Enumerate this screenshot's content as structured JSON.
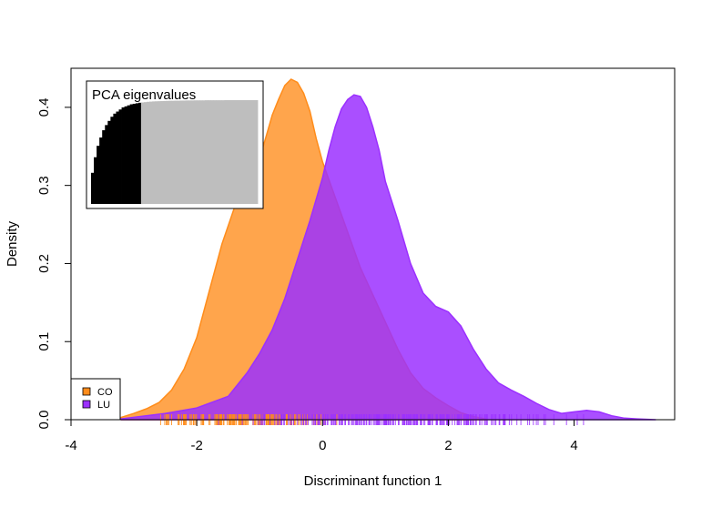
{
  "chart_data": {
    "type": "area",
    "title": "",
    "xlabel": "Discriminant function 1",
    "ylabel": "Density",
    "xlim": [
      -4.0,
      5.6
    ],
    "ylim": [
      0.0,
      0.45
    ],
    "x_ticks": [
      "-4",
      "-2",
      "0",
      "2",
      "4"
    ],
    "y_ticks": [
      "0.0",
      "0.1",
      "0.2",
      "0.3",
      "0.4"
    ],
    "grid": false,
    "legend": {
      "placement": "bottom-left"
    },
    "series": [
      {
        "name": "CO",
        "color": "#FF8C1A",
        "opacity": 0.78,
        "x": [
          -3.2,
          -3.0,
          -2.8,
          -2.6,
          -2.4,
          -2.2,
          -2.0,
          -1.8,
          -1.6,
          -1.4,
          -1.2,
          -1.0,
          -0.9,
          -0.8,
          -0.7,
          -0.6,
          -0.5,
          -0.4,
          -0.3,
          -0.2,
          -0.1,
          0.0,
          0.2,
          0.4,
          0.6,
          0.8,
          1.0,
          1.2,
          1.4,
          1.6,
          1.8,
          2.0,
          2.2,
          2.4,
          2.6
        ],
        "y": [
          0.003,
          0.008,
          0.014,
          0.022,
          0.038,
          0.065,
          0.105,
          0.165,
          0.225,
          0.272,
          0.3,
          0.335,
          0.362,
          0.39,
          0.41,
          0.428,
          0.436,
          0.432,
          0.418,
          0.395,
          0.36,
          0.33,
          0.285,
          0.24,
          0.195,
          0.16,
          0.125,
          0.09,
          0.06,
          0.04,
          0.028,
          0.018,
          0.009,
          0.004,
          0.001
        ]
      },
      {
        "name": "LU",
        "color": "#9B30FF",
        "opacity": 0.85,
        "x": [
          -3.2,
          -3.0,
          -2.5,
          -2.0,
          -1.5,
          -1.2,
          -1.0,
          -0.8,
          -0.6,
          -0.4,
          -0.2,
          0.0,
          0.1,
          0.2,
          0.3,
          0.4,
          0.5,
          0.6,
          0.7,
          0.8,
          0.9,
          1.0,
          1.2,
          1.4,
          1.6,
          1.8,
          2.0,
          2.2,
          2.4,
          2.6,
          2.8,
          3.0,
          3.2,
          3.4,
          3.6,
          3.8,
          4.0,
          4.2,
          4.4,
          4.6,
          4.8,
          5.0,
          5.3
        ],
        "y": [
          0.001,
          0.003,
          0.008,
          0.015,
          0.03,
          0.06,
          0.085,
          0.115,
          0.155,
          0.205,
          0.255,
          0.31,
          0.345,
          0.375,
          0.398,
          0.41,
          0.416,
          0.414,
          0.4,
          0.375,
          0.345,
          0.305,
          0.255,
          0.2,
          0.162,
          0.145,
          0.138,
          0.12,
          0.09,
          0.065,
          0.047,
          0.038,
          0.03,
          0.021,
          0.013,
          0.008,
          0.01,
          0.012,
          0.01,
          0.005,
          0.002,
          0.001,
          0.0
        ]
      }
    ],
    "rug": [
      {
        "series": "CO",
        "color": "#FF8C1A",
        "range": [
          -3.0,
          0.6
        ]
      },
      {
        "series": "LU",
        "color": "#9B30FF",
        "range": [
          -2.0,
          4.6
        ]
      }
    ],
    "inset": {
      "title": "PCA eigenvalues",
      "retained_color": "#000000",
      "other_color": "#BEBEBE",
      "n_total": 60,
      "n_retained": 18,
      "cumulative_ratio": [
        0.3,
        0.45,
        0.56,
        0.64,
        0.71,
        0.76,
        0.8,
        0.84,
        0.87,
        0.89,
        0.91,
        0.93,
        0.94,
        0.95,
        0.96,
        0.965,
        0.97,
        0.975,
        0.978,
        0.981,
        0.984,
        0.986,
        0.988,
        0.989,
        0.99,
        0.991,
        0.992,
        0.993,
        0.994,
        0.994,
        0.995,
        0.995,
        0.996,
        0.996,
        0.997,
        0.997,
        0.997,
        0.998,
        0.998,
        0.998,
        0.998,
        0.999,
        0.999,
        0.999,
        0.999,
        0.999,
        0.999,
        0.999,
        1.0,
        1.0,
        1.0,
        1.0,
        1.0,
        1.0,
        1.0,
        1.0,
        1.0,
        1.0,
        1.0,
        1.0
      ]
    }
  }
}
